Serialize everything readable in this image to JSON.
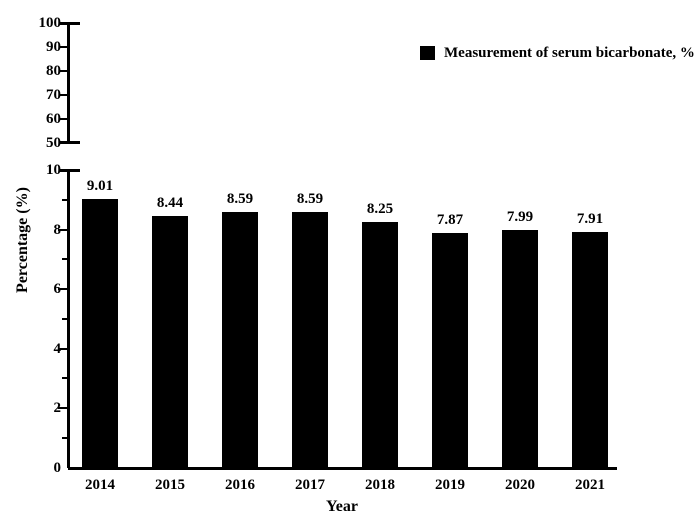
{
  "figure": {
    "background": "#ffffff",
    "text_color": "#000000"
  },
  "chart_data": {
    "type": "bar",
    "title": "",
    "categories": [
      "2014",
      "2015",
      "2016",
      "2017",
      "2018",
      "2019",
      "2020",
      "2021"
    ],
    "values": [
      9.01,
      8.44,
      8.59,
      8.59,
      8.25,
      7.87,
      7.99,
      7.91
    ],
    "bar_labels": [
      "9.01",
      "8.44",
      "8.59",
      "8.59",
      "8.25",
      "7.87",
      "7.99",
      "7.91"
    ],
    "xlabel": "Year",
    "ylabel": "Percentage (%)",
    "bar_color": "#000000",
    "grid": false,
    "legend": {
      "label": "Measurement of serum bicarbonate, %",
      "swatch_color": "#000000",
      "position": "top-right"
    },
    "axis_break": true,
    "upper_axis": {
      "range": [
        50,
        100
      ],
      "ticks": [
        100,
        90,
        80,
        70,
        60,
        50
      ]
    },
    "lower_axis": {
      "range": [
        0,
        10
      ],
      "major_ticks": [
        10,
        8,
        6,
        4,
        2,
        0
      ],
      "minor_ticks": [
        9,
        7,
        5,
        3,
        1
      ]
    }
  }
}
